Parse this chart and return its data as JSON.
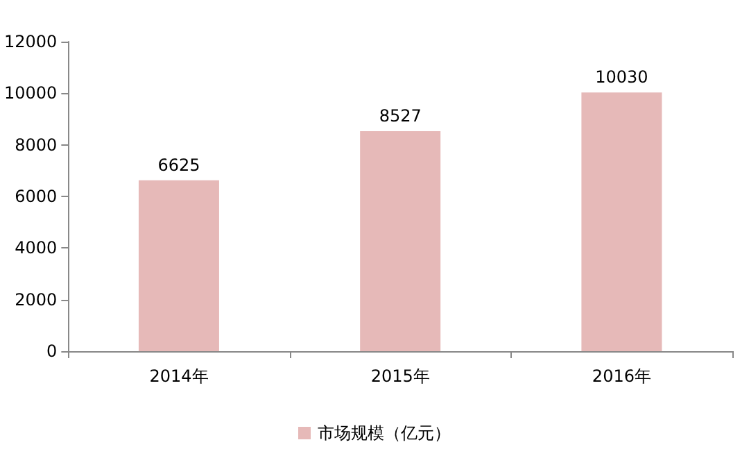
{
  "chart_data": {
    "type": "bar",
    "categories": [
      "2014年",
      "2015年",
      "2016年"
    ],
    "series": [
      {
        "name": "市场规模（亿元）",
        "color": "#e6b9b8",
        "values": [
          6625,
          8527,
          10030
        ]
      }
    ],
    "ylim": [
      0,
      12000
    ],
    "yticks": [
      0,
      2000,
      4000,
      6000,
      8000,
      10000,
      12000
    ],
    "data_labels": true,
    "legend": "bottom"
  }
}
